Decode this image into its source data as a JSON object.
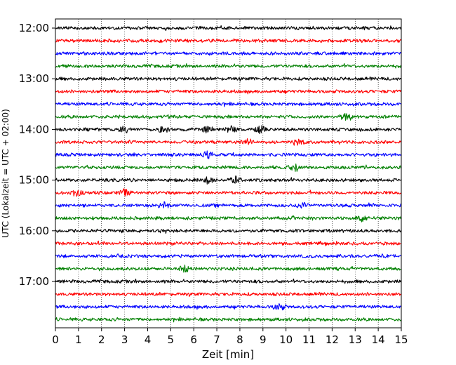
{
  "chart_data": {
    "type": "line",
    "title": "",
    "xlabel": "Zeit  [min]",
    "ylabel": "UTC (Lokalzeit = UTC + 02:00)",
    "xlim": [
      0,
      15
    ],
    "x_ticks": [
      0,
      1,
      2,
      3,
      4,
      5,
      6,
      7,
      8,
      9,
      10,
      11,
      12,
      13,
      14,
      15
    ],
    "x_grid": "dotted",
    "y_ticks": [
      "12:00",
      "13:00",
      "14:00",
      "15:00",
      "16:00",
      "17:00"
    ],
    "row_interval_minutes": 15,
    "row_colors_cycle": [
      "#000000",
      "#ff0000",
      "#0000ff",
      "#008000"
    ],
    "traces": [
      {
        "start": "12:00",
        "color": "#000000",
        "events": []
      },
      {
        "start": "12:15",
        "color": "#ff0000",
        "events": []
      },
      {
        "start": "12:30",
        "color": "#0000ff",
        "events": []
      },
      {
        "start": "12:45",
        "color": "#008000",
        "events": []
      },
      {
        "start": "13:00",
        "color": "#000000",
        "events": []
      },
      {
        "start": "13:15",
        "color": "#ff0000",
        "events": []
      },
      {
        "start": "13:30",
        "color": "#0000ff",
        "events": []
      },
      {
        "start": "13:45",
        "color": "#008000",
        "events": [
          12.6
        ]
      },
      {
        "start": "14:00",
        "color": "#000000",
        "events": [
          3.0,
          4.7,
          6.6,
          7.6,
          8.9
        ]
      },
      {
        "start": "14:15",
        "color": "#ff0000",
        "events": [
          8.3,
          10.5
        ]
      },
      {
        "start": "14:30",
        "color": "#0000ff",
        "events": [
          6.6
        ]
      },
      {
        "start": "14:45",
        "color": "#008000",
        "events": [
          10.4
        ]
      },
      {
        "start": "15:00",
        "color": "#000000",
        "events": [
          7.8,
          6.6
        ]
      },
      {
        "start": "15:15",
        "color": "#ff0000",
        "events": [
          0.9,
          3.0
        ]
      },
      {
        "start": "15:30",
        "color": "#0000ff",
        "events": [
          4.7,
          10.7
        ]
      },
      {
        "start": "15:45",
        "color": "#008000",
        "events": [
          13.3
        ]
      },
      {
        "start": "16:00",
        "color": "#000000",
        "events": []
      },
      {
        "start": "16:15",
        "color": "#ff0000",
        "events": []
      },
      {
        "start": "16:30",
        "color": "#0000ff",
        "events": []
      },
      {
        "start": "16:45",
        "color": "#008000",
        "events": [
          5.6
        ]
      },
      {
        "start": "17:00",
        "color": "#000000",
        "events": []
      },
      {
        "start": "17:15",
        "color": "#ff0000",
        "events": []
      },
      {
        "start": "17:30",
        "color": "#0000ff",
        "events": [
          9.7
        ]
      },
      {
        "start": "17:45",
        "color": "#008000",
        "events": []
      }
    ]
  }
}
